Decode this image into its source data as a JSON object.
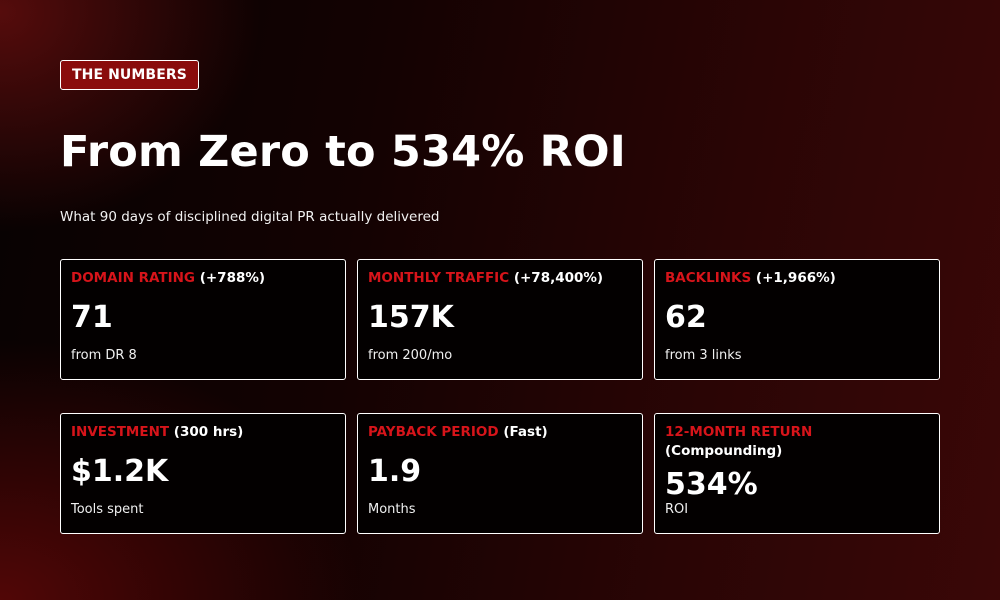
{
  "badge": "THE NUMBERS",
  "title": "From Zero to 534% ROI",
  "subtitle": "What 90 days of disciplined digital PR actually delivered",
  "colors": {
    "accent_red": "#d7141a",
    "badge_bg": "#8a0c0c",
    "card_border": "#ffffff",
    "text": "#ffffff"
  },
  "cards": [
    {
      "key": "DOMAIN RATING",
      "note": "(+788%)",
      "value": "71",
      "sub": "from DR 8"
    },
    {
      "key": "MONTHLY TRAFFIC",
      "note": "(+78,400%)",
      "value": "157K",
      "sub": "from 200/mo"
    },
    {
      "key": "BACKLINKS",
      "note": "(+1,966%)",
      "value": "62",
      "sub": "from 3 links"
    },
    {
      "key": "INVESTMENT",
      "note": "(300 hrs)",
      "value": "$1.2K",
      "sub": "Tools spent"
    },
    {
      "key": "PAYBACK PERIOD",
      "note": "(Fast)",
      "value": "1.9",
      "sub": "Months"
    },
    {
      "key": "12-MONTH RETURN",
      "note": "(Compounding)",
      "value": "534%",
      "sub": "ROI"
    }
  ]
}
